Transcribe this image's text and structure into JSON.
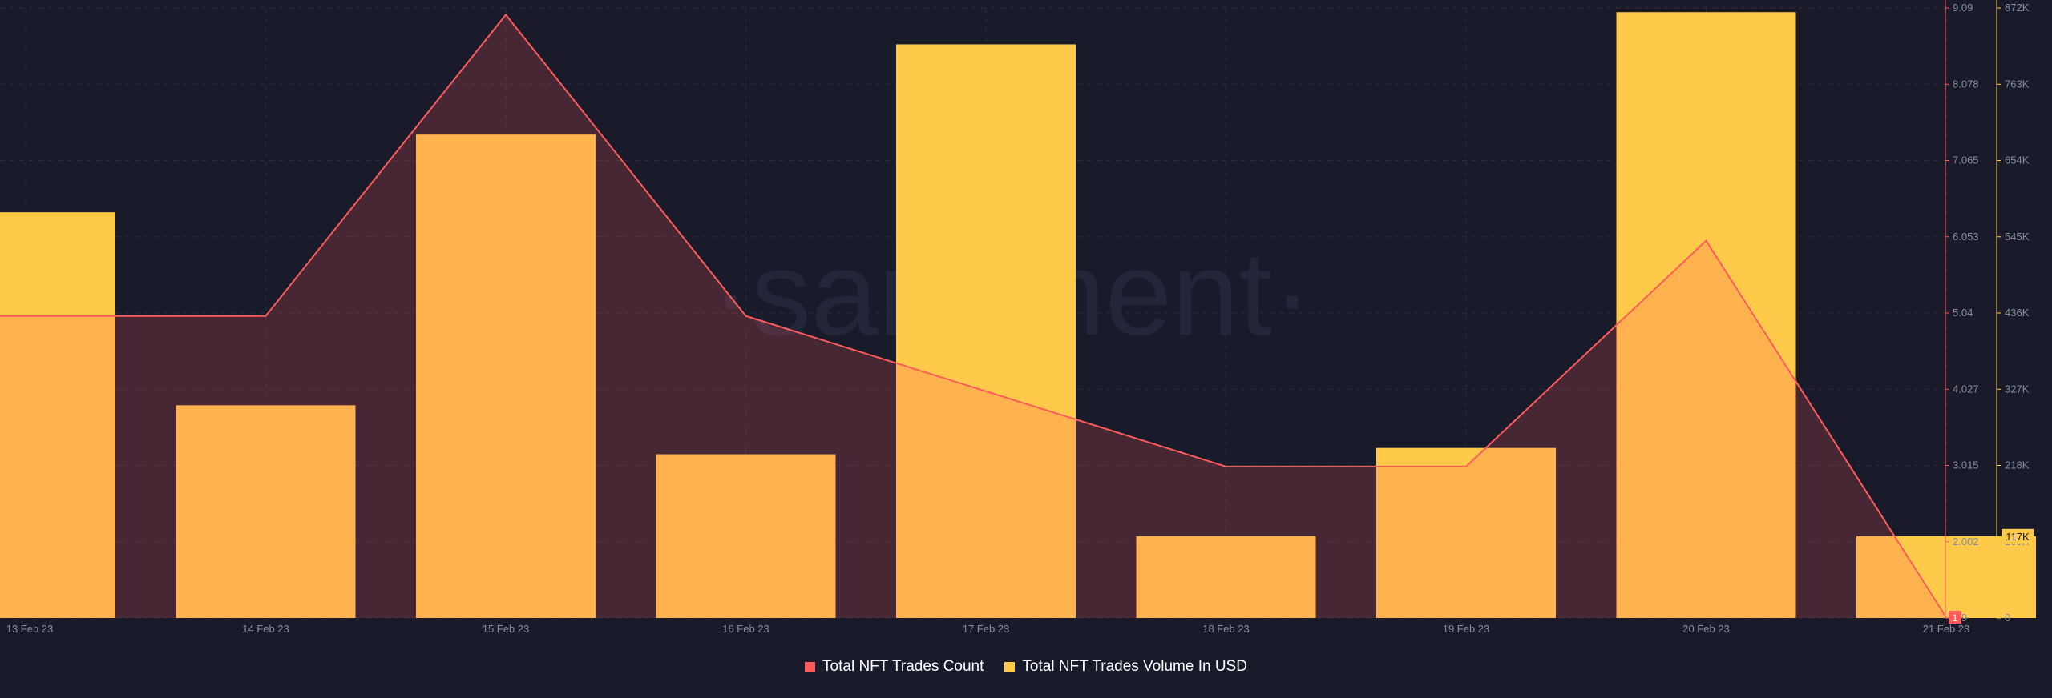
{
  "watermark": "·santiment·",
  "legend": {
    "count_label": "Total NFT Trades Count",
    "volume_label": "Total NFT Trades Volume In USD"
  },
  "colors": {
    "background": "#191b2b",
    "count_line": "#ff5b5b",
    "count_fill": "#40232f",
    "volume_bar": "#ffc94a",
    "grid": "#2a2d40",
    "tick_text": "#8a8d9e"
  },
  "badges": {
    "volume_current": "117K",
    "count_current": "1"
  },
  "chart_data": {
    "type": "bar",
    "x": [
      "13 Feb 23",
      "14 Feb 23",
      "15 Feb 23",
      "16 Feb 23",
      "17 Feb 23",
      "18 Feb 23",
      "19 Feb 23",
      "20 Feb 23",
      "21 Feb 23"
    ],
    "series": [
      {
        "name": "Total NFT Trades Count",
        "type": "area",
        "axis": "left",
        "values": [
          5,
          5,
          9,
          5,
          4,
          3,
          3,
          6,
          1
        ]
      },
      {
        "name": "Total NFT Trades Volume In USD",
        "type": "bar",
        "axis": "right",
        "values": [
          580000,
          304000,
          691000,
          234000,
          820000,
          117000,
          243000,
          866000,
          117000
        ]
      }
    ],
    "count_axis": {
      "ticks": [
        "9.09",
        "8.078",
        "7.065",
        "6.053",
        "5.04",
        "4.027",
        "3.015",
        "2.002",
        ".99"
      ],
      "ylim": [
        0.99,
        9.09
      ]
    },
    "volume_axis": {
      "ticks": [
        "872K",
        "763K",
        "654K",
        "545K",
        "436K",
        "327K",
        "218K",
        "109K",
        "0"
      ],
      "ylim": [
        0,
        872000
      ]
    },
    "grid": true,
    "legend_position": "bottom"
  }
}
